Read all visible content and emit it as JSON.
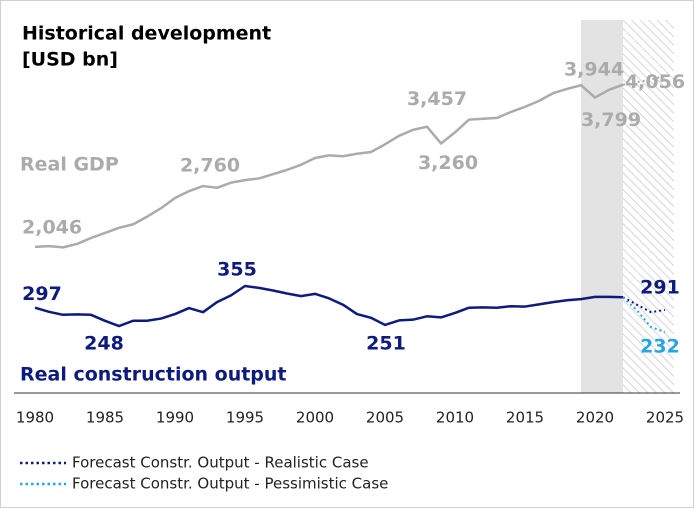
{
  "chart_data": {
    "type": "line",
    "title": "Historical development",
    "subtitle": "[USD bn]",
    "x": [
      1980,
      1981,
      1982,
      1983,
      1984,
      1985,
      1986,
      1987,
      1988,
      1989,
      1990,
      1991,
      1992,
      1993,
      1994,
      1995,
      1996,
      1997,
      1998,
      1999,
      2000,
      2001,
      2002,
      2003,
      2004,
      2005,
      2006,
      2007,
      2008,
      2009,
      2010,
      2011,
      2012,
      2013,
      2014,
      2015,
      2016,
      2017,
      2018,
      2019,
      2020,
      2021,
      2022,
      2023,
      2024,
      2025
    ],
    "xlim": [
      1980,
      2025
    ],
    "xticks": [
      1980,
      1985,
      1990,
      1995,
      2000,
      2005,
      2010,
      2015,
      2020,
      2025
    ],
    "ylim": [
      330,
      4710
    ],
    "y2lim": [
      69,
      1066
    ],
    "highlight_start": 2019,
    "forecast_start": 2022,
    "series": [
      {
        "name": "Real GDP",
        "color": "#ababab",
        "values": [
          2046,
          2055,
          2040,
          2080,
          2150,
          2210,
          2270,
          2310,
          2400,
          2500,
          2620,
          2700,
          2760,
          2740,
          2800,
          2830,
          2850,
          2900,
          2950,
          3010,
          3090,
          3120,
          3110,
          3140,
          3160,
          3250,
          3350,
          3420,
          3457,
          3260,
          3390,
          3540,
          3550,
          3560,
          3630,
          3690,
          3760,
          3850,
          3900,
          3944,
          3799,
          3890,
          3950,
          3980,
          4010,
          4056
        ],
        "value_labels": [
          "2,046",
          null,
          null,
          null,
          null,
          null,
          null,
          null,
          null,
          null,
          null,
          null,
          "2,760",
          null,
          null,
          null,
          null,
          null,
          null,
          null,
          null,
          null,
          null,
          null,
          null,
          null,
          null,
          null,
          "3,457",
          "3,260",
          null,
          null,
          null,
          null,
          null,
          null,
          null,
          null,
          null,
          "3,944",
          "3,799",
          null,
          null,
          null,
          null,
          "4,056"
        ]
      },
      {
        "name": "Real construction output",
        "color": "#0d1a7e",
        "axis": "y2",
        "values": [
          297,
          286,
          278,
          279,
          278,
          262,
          248,
          262,
          262,
          268,
          280,
          296,
          285,
          312,
          330,
          355,
          350,
          343,
          335,
          328,
          334,
          322,
          305,
          280,
          270,
          251,
          263,
          265,
          274,
          271,
          283,
          297,
          298,
          297,
          301,
          300,
          306,
          312,
          317,
          320,
          326,
          326,
          325,
          null,
          null,
          null
        ],
        "value_labels": [
          "297",
          null,
          null,
          null,
          null,
          null,
          "248",
          null,
          null,
          null,
          null,
          null,
          null,
          null,
          null,
          "355",
          null,
          null,
          null,
          null,
          null,
          null,
          null,
          null,
          null,
          "251",
          null,
          null,
          null,
          null,
          null,
          null,
          null,
          null,
          null,
          null,
          null,
          null,
          null,
          null,
          null,
          null,
          null,
          null,
          null,
          null
        ]
      },
      {
        "name": "Forecast Constr. Output - Realistic Case",
        "color": "#0d1a7e",
        "axis": "y2",
        "dotted": true,
        "values": [
          null,
          null,
          null,
          null,
          null,
          null,
          null,
          null,
          null,
          null,
          null,
          null,
          null,
          null,
          null,
          null,
          null,
          null,
          null,
          null,
          null,
          null,
          null,
          null,
          null,
          null,
          null,
          null,
          null,
          null,
          null,
          null,
          null,
          null,
          null,
          null,
          null,
          null,
          null,
          null,
          null,
          null,
          325,
          305,
          285,
          291
        ],
        "value_labels": [
          null,
          null,
          null,
          null,
          null,
          null,
          null,
          null,
          null,
          null,
          null,
          null,
          null,
          null,
          null,
          null,
          null,
          null,
          null,
          null,
          null,
          null,
          null,
          null,
          null,
          null,
          null,
          null,
          null,
          null,
          null,
          null,
          null,
          null,
          null,
          null,
          null,
          null,
          null,
          null,
          null,
          null,
          null,
          null,
          null,
          "291"
        ]
      },
      {
        "name": "Forecast Constr. Output - Pessimistic Case",
        "color": "#2aa3e6",
        "axis": "y2",
        "dotted": true,
        "values": [
          null,
          null,
          null,
          null,
          null,
          null,
          null,
          null,
          null,
          null,
          null,
          null,
          null,
          null,
          null,
          null,
          null,
          null,
          null,
          null,
          null,
          null,
          null,
          null,
          null,
          null,
          null,
          null,
          null,
          null,
          null,
          null,
          null,
          null,
          null,
          null,
          null,
          null,
          null,
          null,
          null,
          null,
          325,
          290,
          245,
          232
        ],
        "value_labels": [
          null,
          null,
          null,
          null,
          null,
          null,
          null,
          null,
          null,
          null,
          null,
          null,
          null,
          null,
          null,
          null,
          null,
          null,
          null,
          null,
          null,
          null,
          null,
          null,
          null,
          null,
          null,
          null,
          null,
          null,
          null,
          null,
          null,
          null,
          null,
          null,
          null,
          null,
          null,
          null,
          null,
          null,
          null,
          null,
          null,
          "232"
        ]
      }
    ]
  }
}
